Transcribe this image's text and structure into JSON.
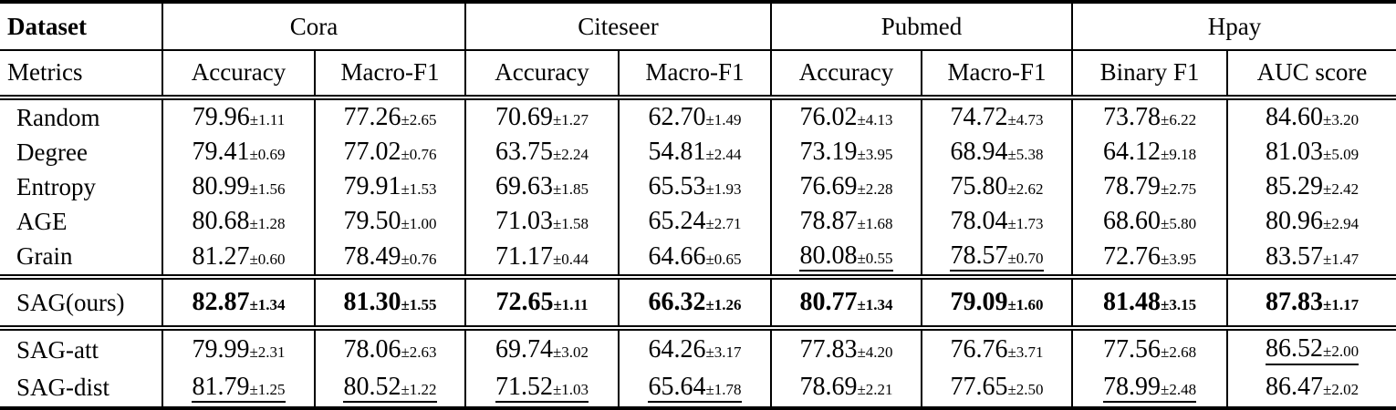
{
  "table": {
    "header": {
      "dataset_label": "Dataset",
      "groups": [
        "Cora",
        "Citeseer",
        "Pubmed",
        "Hpay"
      ],
      "metrics_label": "Metrics",
      "metrics": [
        "Accuracy",
        "Macro-F1",
        "Accuracy",
        "Macro-F1",
        "Accuracy",
        "Macro-F1",
        "Binary F1",
        "AUC score"
      ]
    },
    "sections": [
      {
        "name": "section-baselines",
        "rows": [
          {
            "label": "Random",
            "bold": false,
            "cells": [
              {
                "value": "79.96",
                "pm": "±1.11",
                "underline": false
              },
              {
                "value": "77.26",
                "pm": "±2.65",
                "underline": false
              },
              {
                "value": "70.69",
                "pm": "±1.27",
                "underline": false
              },
              {
                "value": "62.70",
                "pm": "±1.49",
                "underline": false
              },
              {
                "value": "76.02",
                "pm": "±4.13",
                "underline": false
              },
              {
                "value": "74.72",
                "pm": "±4.73",
                "underline": false
              },
              {
                "value": "73.78",
                "pm": "±6.22",
                "underline": false
              },
              {
                "value": "84.60",
                "pm": "±3.20",
                "underline": false
              }
            ]
          },
          {
            "label": "Degree",
            "bold": false,
            "cells": [
              {
                "value": "79.41",
                "pm": "±0.69",
                "underline": false
              },
              {
                "value": "77.02",
                "pm": "±0.76",
                "underline": false
              },
              {
                "value": "63.75",
                "pm": "±2.24",
                "underline": false
              },
              {
                "value": "54.81",
                "pm": "±2.44",
                "underline": false
              },
              {
                "value": "73.19",
                "pm": "±3.95",
                "underline": false
              },
              {
                "value": "68.94",
                "pm": "±5.38",
                "underline": false
              },
              {
                "value": "64.12",
                "pm": "±9.18",
                "underline": false
              },
              {
                "value": "81.03",
                "pm": "±5.09",
                "underline": false
              }
            ]
          },
          {
            "label": "Entropy",
            "bold": false,
            "cells": [
              {
                "value": "80.99",
                "pm": "±1.56",
                "underline": false
              },
              {
                "value": "79.91",
                "pm": "±1.53",
                "underline": false
              },
              {
                "value": "69.63",
                "pm": "±1.85",
                "underline": false
              },
              {
                "value": "65.53",
                "pm": "±1.93",
                "underline": false
              },
              {
                "value": "76.69",
                "pm": "±2.28",
                "underline": false
              },
              {
                "value": "75.80",
                "pm": "±2.62",
                "underline": false
              },
              {
                "value": "78.79",
                "pm": "±2.75",
                "underline": false
              },
              {
                "value": "85.29",
                "pm": "±2.42",
                "underline": false
              }
            ]
          },
          {
            "label": "AGE",
            "bold": false,
            "cells": [
              {
                "value": "80.68",
                "pm": "±1.28",
                "underline": false
              },
              {
                "value": "79.50",
                "pm": "±1.00",
                "underline": false
              },
              {
                "value": "71.03",
                "pm": "±1.58",
                "underline": false
              },
              {
                "value": "65.24",
                "pm": "±2.71",
                "underline": false
              },
              {
                "value": "78.87",
                "pm": "±1.68",
                "underline": false
              },
              {
                "value": "78.04",
                "pm": "±1.73",
                "underline": false
              },
              {
                "value": "68.60",
                "pm": "±5.80",
                "underline": false
              },
              {
                "value": "80.96",
                "pm": "±2.94",
                "underline": false
              }
            ]
          },
          {
            "label": "Grain",
            "bold": false,
            "cells": [
              {
                "value": "81.27",
                "pm": "±0.60",
                "underline": false
              },
              {
                "value": "78.49",
                "pm": "±0.76",
                "underline": false
              },
              {
                "value": "71.17",
                "pm": "±0.44",
                "underline": false
              },
              {
                "value": "64.66",
                "pm": "±0.65",
                "underline": false
              },
              {
                "value": "80.08",
                "pm": "±0.55",
                "underline": true
              },
              {
                "value": "78.57",
                "pm": "±0.70",
                "underline": true
              },
              {
                "value": "72.76",
                "pm": "±3.95",
                "underline": false
              },
              {
                "value": "83.57",
                "pm": "±1.47",
                "underline": false
              }
            ]
          }
        ]
      },
      {
        "name": "section-ours",
        "rows": [
          {
            "label": "SAG(ours)",
            "bold": true,
            "cells": [
              {
                "value": "82.87",
                "pm": "±1.34",
                "underline": false
              },
              {
                "value": "81.30",
                "pm": "±1.55",
                "underline": false
              },
              {
                "value": "72.65",
                "pm": "±1.11",
                "underline": false
              },
              {
                "value": "66.32",
                "pm": "±1.26",
                "underline": false
              },
              {
                "value": "80.77",
                "pm": "±1.34",
                "underline": false
              },
              {
                "value": "79.09",
                "pm": "±1.60",
                "underline": false
              },
              {
                "value": "81.48",
                "pm": "±3.15",
                "underline": false
              },
              {
                "value": "87.83",
                "pm": "±1.17",
                "underline": false
              }
            ]
          }
        ]
      },
      {
        "name": "section-ablation",
        "rows": [
          {
            "label": "SAG-att",
            "bold": false,
            "cells": [
              {
                "value": "79.99",
                "pm": "±2.31",
                "underline": false
              },
              {
                "value": "78.06",
                "pm": "±2.63",
                "underline": false
              },
              {
                "value": "69.74",
                "pm": "±3.02",
                "underline": false
              },
              {
                "value": "64.26",
                "pm": "±3.17",
                "underline": false
              },
              {
                "value": "77.83",
                "pm": "±4.20",
                "underline": false
              },
              {
                "value": "76.76",
                "pm": "±3.71",
                "underline": false
              },
              {
                "value": "77.56",
                "pm": "±2.68",
                "underline": false
              },
              {
                "value": "86.52",
                "pm": "±2.00",
                "underline": true
              }
            ]
          },
          {
            "label": "SAG-dist",
            "bold": false,
            "cells": [
              {
                "value": "81.79",
                "pm": "±1.25",
                "underline": true
              },
              {
                "value": "80.52",
                "pm": "±1.22",
                "underline": true
              },
              {
                "value": "71.52",
                "pm": "±1.03",
                "underline": true
              },
              {
                "value": "65.64",
                "pm": "±1.78",
                "underline": true
              },
              {
                "value": "78.69",
                "pm": "±2.21",
                "underline": false
              },
              {
                "value": "77.65",
                "pm": "±2.50",
                "underline": false
              },
              {
                "value": "78.99",
                "pm": "±2.48",
                "underline": true
              },
              {
                "value": "86.47",
                "pm": "±2.02",
                "underline": false
              }
            ]
          }
        ]
      }
    ]
  },
  "chart_data": {
    "type": "table",
    "title": "",
    "column_groups": [
      "Cora",
      "Citeseer",
      "Pubmed",
      "Hpay"
    ],
    "columns": [
      "Cora Accuracy",
      "Cora Macro-F1",
      "Citeseer Accuracy",
      "Citeseer Macro-F1",
      "Pubmed Accuracy",
      "Pubmed Macro-F1",
      "Hpay Binary F1",
      "Hpay AUC score"
    ],
    "rows": [
      {
        "method": "Random",
        "means": [
          79.96,
          77.26,
          70.69,
          62.7,
          76.02,
          74.72,
          73.78,
          84.6
        ],
        "stds": [
          1.11,
          2.65,
          1.27,
          1.49,
          4.13,
          4.73,
          6.22,
          3.2
        ]
      },
      {
        "method": "Degree",
        "means": [
          79.41,
          77.02,
          63.75,
          54.81,
          73.19,
          68.94,
          64.12,
          81.03
        ],
        "stds": [
          0.69,
          0.76,
          2.24,
          2.44,
          3.95,
          5.38,
          9.18,
          5.09
        ]
      },
      {
        "method": "Entropy",
        "means": [
          80.99,
          79.91,
          69.63,
          65.53,
          76.69,
          75.8,
          78.79,
          85.29
        ],
        "stds": [
          1.56,
          1.53,
          1.85,
          1.93,
          2.28,
          2.62,
          2.75,
          2.42
        ]
      },
      {
        "method": "AGE",
        "means": [
          80.68,
          79.5,
          71.03,
          65.24,
          78.87,
          78.04,
          68.6,
          80.96
        ],
        "stds": [
          1.28,
          1.0,
          1.58,
          2.71,
          1.68,
          1.73,
          5.8,
          2.94
        ]
      },
      {
        "method": "Grain",
        "means": [
          81.27,
          78.49,
          71.17,
          64.66,
          80.08,
          78.57,
          72.76,
          83.57
        ],
        "stds": [
          0.6,
          0.76,
          0.44,
          0.65,
          0.55,
          0.7,
          3.95,
          1.47
        ]
      },
      {
        "method": "SAG(ours)",
        "means": [
          82.87,
          81.3,
          72.65,
          66.32,
          80.77,
          79.09,
          81.48,
          87.83
        ],
        "stds": [
          1.34,
          1.55,
          1.11,
          1.26,
          1.34,
          1.6,
          3.15,
          1.17
        ]
      },
      {
        "method": "SAG-att",
        "means": [
          79.99,
          78.06,
          69.74,
          64.26,
          77.83,
          76.76,
          77.56,
          86.52
        ],
        "stds": [
          2.31,
          2.63,
          3.02,
          3.17,
          4.2,
          3.71,
          2.68,
          2.0
        ]
      },
      {
        "method": "SAG-dist",
        "means": [
          81.79,
          80.52,
          71.52,
          65.64,
          78.69,
          77.65,
          78.99,
          86.47
        ],
        "stds": [
          1.25,
          1.22,
          1.03,
          1.78,
          2.21,
          2.5,
          2.48,
          2.02
        ]
      }
    ]
  }
}
